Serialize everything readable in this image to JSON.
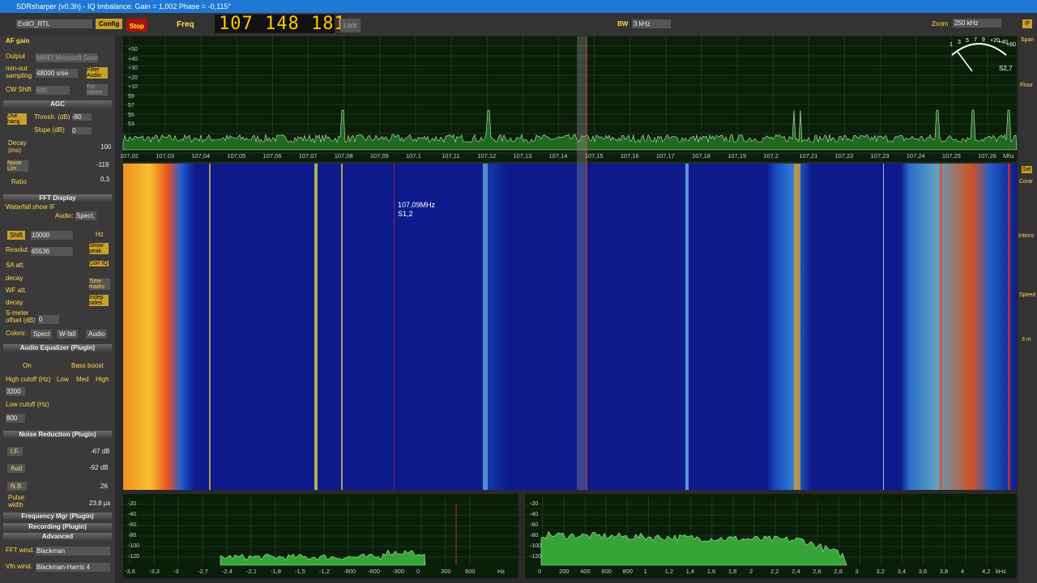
{
  "window": {
    "title": "SDRsharper (v0.3h) - IQ Imbalance: Gain = 1,002 Phase = -0,115°"
  },
  "toolbar": {
    "source": "ExtIO_RTL",
    "config": "Config",
    "stop": "Stop",
    "freq_label": "Freq",
    "frequency": "107 148 181",
    "lock": "Lock",
    "bw_label": "BW",
    "bw": "3 kHz",
    "zoom_label": "Zoom",
    "zoom": "250 kHz"
  },
  "left_panel": {
    "af_gain": "AF gain",
    "output_label": "Output",
    "output": "MMEI Microsoft Soun",
    "sampling_label": "min-out sampling",
    "sampling": "48000 s/se",
    "filter_audio": "Filter Audio",
    "cw_shift": "CW Shift",
    "cw_value": "600",
    "fm_stereo": "FM stereo",
    "agc": "AGC",
    "use_hang": "Use hang",
    "thresh_label": "Thresh. (dB)",
    "thresh": "-80",
    "slope_label": "Slope (dB)",
    "slope": "0",
    "decay_label": "Decay (ms)",
    "decay": "100",
    "noise_lim": "Noise Lim",
    "noise_lim_value": "-119",
    "ratio": "Ratio",
    "ratio_value": "0,3",
    "fft_display": "FFT Display",
    "waterfall": "Waterfall",
    "show_if": "show IF",
    "audio_label": "Audio:",
    "audio": "Spect.",
    "shift": "Shift",
    "shift_value": "10000",
    "hz": "Hz",
    "resol": "Resolut.",
    "resol_value": "65536",
    "show_peak": "Show peak",
    "sa_att": "SA att.",
    "corr_iq": "Corr IQ",
    "decay1": "decay",
    "wf_att": "WF att.",
    "time_marks": "Time marks",
    "decay2": "decay",
    "indep_sides": "Indep sides",
    "smeter": "S-meter offset (dB)",
    "smeter_value": "0",
    "colors": "Colors:",
    "spect": "Spect",
    "wfall": "W-fall",
    "audio_btn": "Audio",
    "eq": "Audio Equalizer (Plugin)",
    "on": "On",
    "bass": "Bass boost",
    "high_cutoff": "High cutoff (Hz)",
    "high_cutoff_value": "3200",
    "low": "Low",
    "med": "Med",
    "high": "High",
    "low_cutoff": "Low cutoff (Hz)",
    "low_cutoff_value": "800",
    "nr": "Noise Reduction (Plugin)",
    "if": "I.F.",
    "if_value": "-67 dB",
    "aud": "Aud",
    "aud_value": "-92 dB",
    "nb": "N.B.",
    "nb_value": "26",
    "pulse": "Pulse width",
    "pulse_value": "23,8 µs",
    "freq_mgr": "Frequency Mgr (Plugin)",
    "recording": "Recording (Plugin)",
    "advanced": "Advanced",
    "fft_wind": "FFT wind.",
    "fft_wind_value": "Blackman",
    "vfo_wind": "Vfo wind.",
    "vfo_wind_value": "Blackman-Harris 4"
  },
  "spectrum": {
    "y_labels": [
      "+50",
      "+40",
      "+30",
      "+20",
      "+10",
      "59",
      "57",
      "55",
      "53"
    ],
    "x_labels": [
      "107,02",
      "107,03",
      "107,04",
      "107,05",
      "107,06",
      "107,07",
      "107,08",
      "107,09",
      "107,1",
      "107,11",
      "107,12",
      "107,13",
      "107,14",
      "107,15",
      "107,16",
      "107,17",
      "107,18",
      "107,19",
      "107,2",
      "107,21",
      "107,22",
      "107,23",
      "107,24",
      "107,25",
      "107,26"
    ],
    "x_unit": "Mhz",
    "meter_scale": [
      "1",
      "3",
      "5",
      "7",
      "9",
      "+20",
      "+40",
      "+60"
    ],
    "s_meter_value": "S2,7"
  },
  "waterfall": {
    "marker_freq": "107,09MHz",
    "marker_level": "S1,2"
  },
  "right_panel": {
    "if": "IF",
    "span": "Span",
    "floor": "Floor",
    "set": "Set",
    "contr": "Contr",
    "intens": "Intens",
    "speed": "Speed",
    "speed_value": "3 m"
  },
  "audio_spectrum": {
    "y_labels": [
      "-20",
      "-40",
      "-60",
      "-80",
      "-100",
      "-120"
    ],
    "x_labels": [
      "-3,6",
      "-3,3",
      "-3",
      "-2,7",
      "-2,4",
      "-2,1",
      "-1,8",
      "-1,5",
      "-1,2",
      "-900",
      "-600",
      "-300",
      "0",
      "300",
      "600"
    ],
    "x_unit": "Hz"
  },
  "if_spectrum": {
    "y_labels": [
      "-20",
      "-40",
      "-60",
      "-80",
      "-100",
      "-120"
    ],
    "x_labels": [
      "0",
      "200",
      "400",
      "600",
      "800",
      "1",
      "1,2",
      "1,4",
      "1,6",
      "1,8",
      "2",
      "2,2",
      "2,4",
      "2,6",
      "2,8",
      "3",
      "3,2",
      "3,4",
      "3,6",
      "3,8",
      "4",
      "4,2"
    ],
    "x_unit": "kHz"
  }
}
